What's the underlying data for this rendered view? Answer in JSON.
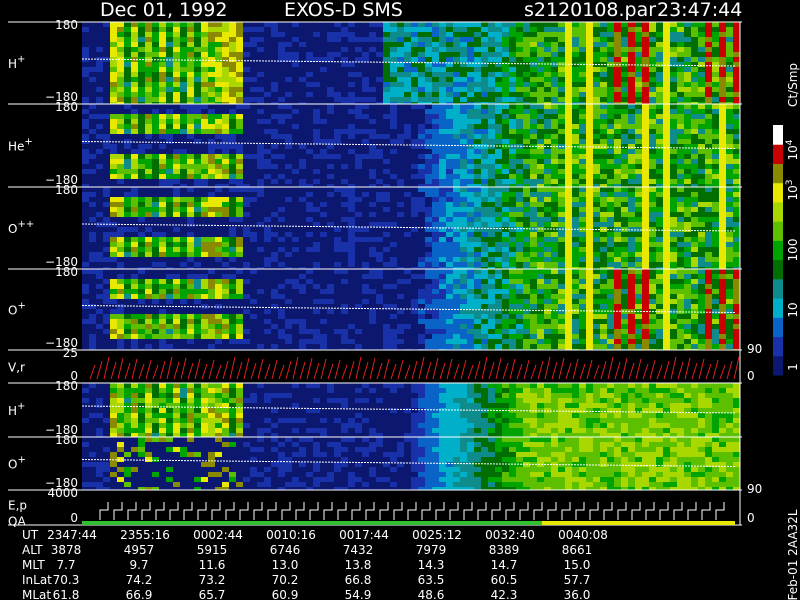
{
  "header": {
    "date": "Dec 01, 1992",
    "instrument": "EXOS-D SMS",
    "file": "s2120108.par",
    "time": "23:47:44"
  },
  "panels": [
    {
      "label": "H",
      "sup": "+",
      "ticks": [
        "180",
        "−180"
      ]
    },
    {
      "label": "He",
      "sup": "+",
      "ticks": [
        "180",
        "−180"
      ]
    },
    {
      "label": "O",
      "sup": "++",
      "ticks": [
        "180",
        "−180"
      ]
    },
    {
      "label": "O",
      "sup": "+",
      "ticks": [
        "180",
        "−180"
      ]
    },
    {
      "label": "V,r",
      "ticks": [
        "25",
        "0"
      ],
      "right_ticks": [
        "90",
        "0"
      ]
    },
    {
      "label": "H",
      "sup": "+",
      "ticks": [
        "180",
        "−180"
      ]
    },
    {
      "label": "O",
      "sup": "+",
      "ticks": [
        "180",
        "−180"
      ]
    },
    {
      "label": "E,p",
      "label2": "QA",
      "ticks": [
        "4000",
        "0"
      ],
      "right_ticks": [
        "90",
        "0"
      ]
    }
  ],
  "colorbar": {
    "unit": "Ct/Smp",
    "ticks": [
      {
        "base": "10",
        "sup": "4"
      },
      {
        "base": "10",
        "sup": "3"
      },
      {
        "base": "100"
      },
      {
        "base": "10"
      },
      {
        "base": "1"
      }
    ]
  },
  "footer": {
    "rows": [
      {
        "label": "UT",
        "values": [
          "2347:44",
          "2355:16",
          "0002:44",
          "0010:16",
          "0017:44",
          "0025:12",
          "0032:40",
          "0040:08"
        ]
      },
      {
        "label": "ALT",
        "values": [
          "3878",
          "4957",
          "5915",
          "6746",
          "7432",
          "7979",
          "8389",
          "8661"
        ]
      },
      {
        "label": "MLT",
        "values": [
          "7.7",
          "9.7",
          "11.6",
          "13.0",
          "13.8",
          "14.3",
          "14.7",
          "15.0"
        ]
      },
      {
        "label": "InLat",
        "values": [
          "70.3",
          "74.2",
          "73.2",
          "70.2",
          "66.8",
          "63.5",
          "60.5",
          "57.7"
        ]
      },
      {
        "label": "MLat",
        "values": [
          "61.8",
          "66.9",
          "65.7",
          "60.9",
          "54.9",
          "48.6",
          "42.3",
          "36.0"
        ]
      }
    ]
  },
  "stamp": "Feb-01 2AA32L"
}
